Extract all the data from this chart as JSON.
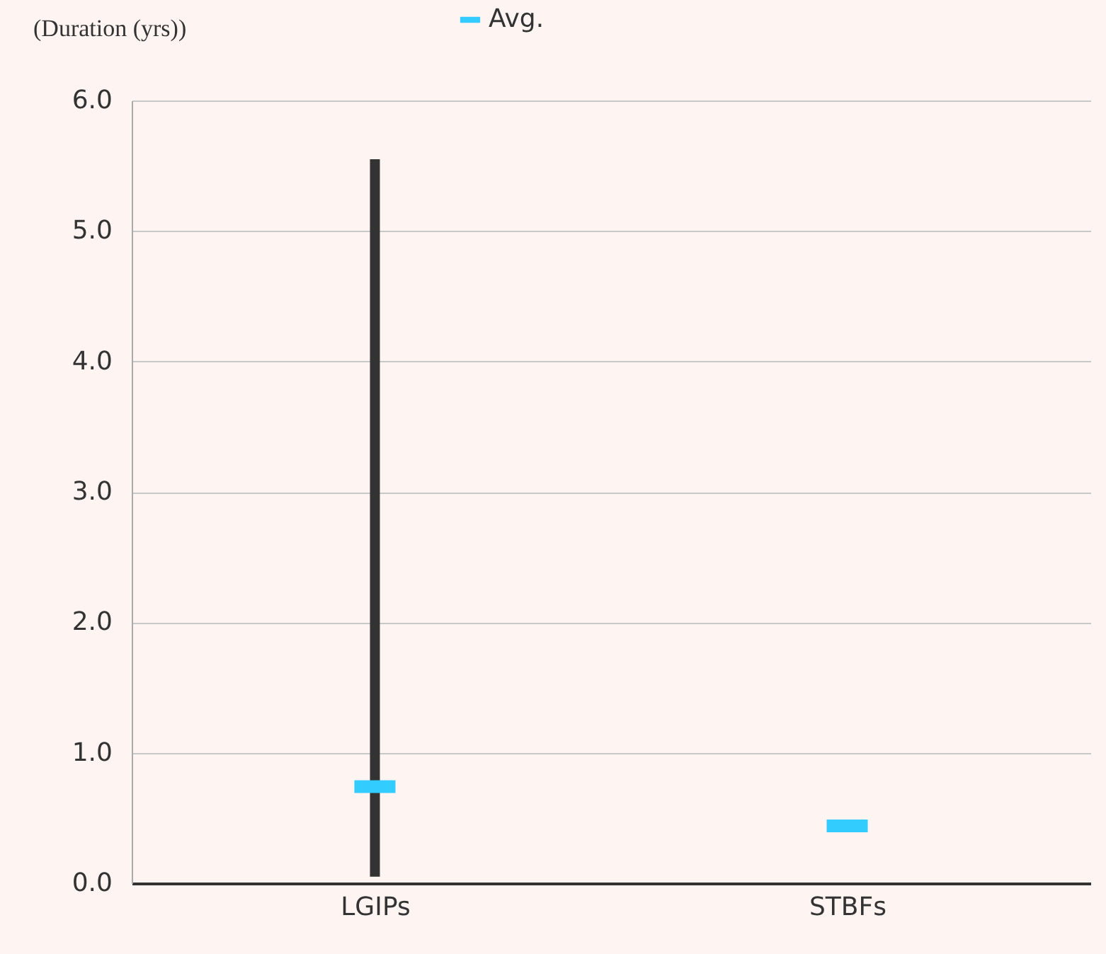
{
  "chart_data": {
    "type": "bar",
    "ylabel": "(Duration (yrs))",
    "categories": [
      "LGIPs",
      "STBFs"
    ],
    "series": [
      {
        "color": "#333333",
        "base": [
          0.05,
          null
        ],
        "values": [
          5.5,
          null
        ]
      },
      {
        "type": "scatter",
        "name": "Avg.",
        "color": "#33ccff",
        "values": [
          0.74,
          0.44
        ]
      }
    ],
    "ylim": [
      0,
      6
    ],
    "yticks": [
      {
        "value": 0,
        "label": "0.0"
      },
      {
        "value": 1,
        "label": "1.0"
      },
      {
        "value": 2,
        "label": "2.0"
      },
      {
        "value": 3,
        "label": "3.0"
      },
      {
        "value": 4,
        "label": "4.0"
      },
      {
        "value": 5,
        "label": "5.0"
      },
      {
        "value": 6,
        "label": "6.0"
      }
    ],
    "grid": "y",
    "legend": "top"
  }
}
